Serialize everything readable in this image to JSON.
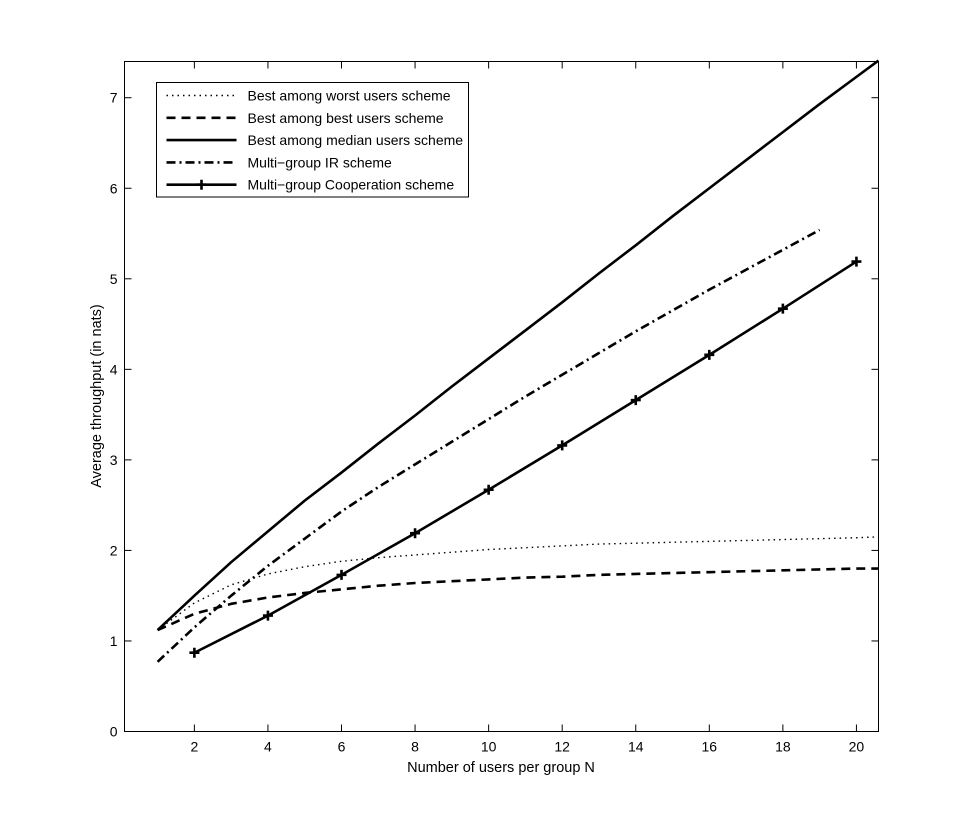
{
  "chart_data": {
    "type": "line",
    "title": "",
    "xlabel": "Number of users per group N",
    "ylabel": "Average throughput (in nats)",
    "xlim": [
      0.1,
      20.6
    ],
    "ylim": [
      0,
      7.4
    ],
    "xticks": [
      2,
      4,
      6,
      8,
      10,
      12,
      14,
      16,
      18,
      20
    ],
    "yticks": [
      0,
      1,
      2,
      3,
      4,
      5,
      6,
      7
    ],
    "grid": false,
    "legend_position": "top-left",
    "series": [
      {
        "name": "Best among worst users scheme",
        "style": "dotted",
        "marker": "none",
        "x": [
          1,
          2,
          3,
          4,
          5,
          6,
          7,
          8,
          9,
          10,
          11,
          12,
          13,
          14,
          15,
          16,
          17,
          18,
          19,
          20,
          20.6
        ],
        "y": [
          1.12,
          1.42,
          1.62,
          1.74,
          1.82,
          1.88,
          1.92,
          1.95,
          1.98,
          2.01,
          2.03,
          2.05,
          2.07,
          2.08,
          2.09,
          2.1,
          2.11,
          2.12,
          2.13,
          2.14,
          2.15
        ]
      },
      {
        "name": "Best among best users scheme",
        "style": "dashed",
        "marker": "none",
        "x": [
          1,
          2,
          3,
          4,
          5,
          6,
          7,
          8,
          9,
          10,
          11,
          12,
          13,
          14,
          15,
          16,
          17,
          18,
          19,
          20,
          20.6
        ],
        "y": [
          1.12,
          1.3,
          1.41,
          1.48,
          1.53,
          1.57,
          1.61,
          1.64,
          1.66,
          1.68,
          1.7,
          1.71,
          1.73,
          1.74,
          1.75,
          1.76,
          1.77,
          1.78,
          1.79,
          1.8,
          1.8
        ]
      },
      {
        "name": "Best among median users scheme",
        "style": "solid",
        "marker": "none",
        "x": [
          1,
          2,
          3,
          4,
          5,
          6,
          7,
          8,
          9,
          10,
          11,
          12,
          13,
          14,
          15,
          16,
          17,
          18,
          19,
          20,
          20.6
        ],
        "y": [
          1.12,
          1.5,
          1.87,
          2.21,
          2.55,
          2.86,
          3.18,
          3.49,
          3.81,
          4.12,
          4.43,
          4.74,
          5.06,
          5.37,
          5.69,
          6.0,
          6.31,
          6.62,
          6.93,
          7.23,
          7.41
        ]
      },
      {
        "name": "Multi−group IR scheme",
        "style": "dashdot",
        "marker": "none",
        "x": [
          1,
          2,
          3,
          4,
          5,
          6,
          7,
          8,
          9,
          10,
          11,
          12,
          13,
          14,
          15,
          16,
          17,
          18,
          19
        ],
        "y": [
          0.77,
          1.15,
          1.5,
          1.83,
          2.13,
          2.43,
          2.7,
          2.95,
          3.2,
          3.45,
          3.7,
          3.94,
          4.18,
          4.42,
          4.65,
          4.88,
          5.1,
          5.32,
          5.54
        ]
      },
      {
        "name": "Multi−group Cooperation scheme",
        "style": "solid",
        "marker": "plus",
        "x": [
          2,
          4,
          6,
          8,
          10,
          12,
          14,
          16,
          18,
          20
        ],
        "y": [
          0.87,
          1.28,
          1.73,
          2.19,
          2.67,
          3.16,
          3.66,
          4.16,
          4.67,
          5.19
        ]
      }
    ]
  }
}
